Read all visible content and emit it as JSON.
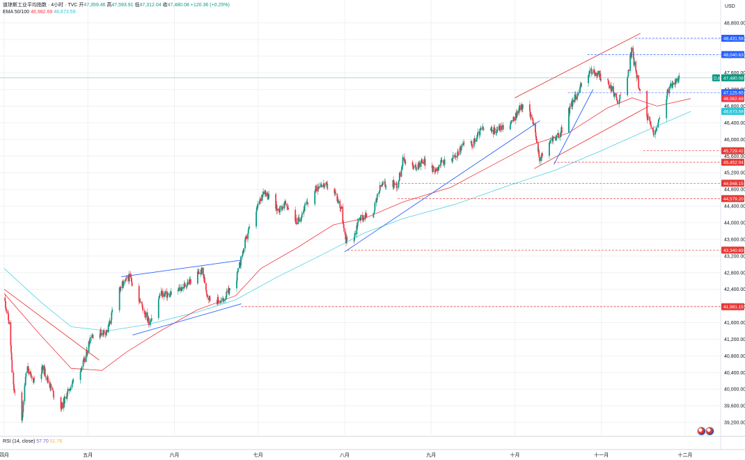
{
  "header": {
    "symbol": "道琼斯工业平均指数 · 4小时 · TVC",
    "open_label": "开",
    "open": "47,359.46",
    "high_label": "高",
    "high": "47,593.91",
    "low_label": "低",
    "low": "47,312.04",
    "close_label": "收",
    "close": "47,480.08",
    "change": "+120.36 (+0.25%)",
    "ema_label": "EMA 50/100",
    "ema50_value": "46,982.69",
    "ema100_value": "46,673.59",
    "currency": "USD"
  },
  "rsi": {
    "label": "RSI (14, close)",
    "value1": "57.70",
    "value2": "51.76"
  },
  "colors": {
    "up": "#089981",
    "down": "#f23645",
    "ema50": "#f23645",
    "ema100": "#4dd0e1",
    "trend_blue": "#2962ff",
    "trend_red": "#e53935",
    "grid": "#eef0f3"
  },
  "chart_data": {
    "type": "candlestick",
    "y_axis": {
      "range": [
        38900,
        49150
      ],
      "ticks": [
        "48,800.00",
        "48,400.00",
        "48,000.00",
        "47,600.00",
        "47,200.00",
        "46,800.00",
        "46,400.00",
        "46,000.00",
        "45,600.00",
        "45,200.00",
        "44,800.00",
        "44,400.00",
        "44,000.00",
        "43,600.00",
        "43,200.00",
        "42,800.00",
        "42,400.00",
        "42,000.00",
        "41,600.00",
        "41,200.00",
        "40,800.00",
        "40,400.00",
        "40,000.00",
        "39,600.00",
        "39,200.00"
      ]
    },
    "x_axis": {
      "months": [
        {
          "label": "四月",
          "date": "2025-04-01"
        },
        {
          "label": "五月",
          "date": "2025-05-01"
        },
        {
          "label": "六月",
          "date": "2025-06-01"
        },
        {
          "label": "七月",
          "date": "2025-07-01"
        },
        {
          "label": "八月",
          "date": "2025-08-01"
        },
        {
          "label": "九月",
          "date": "2025-09-01"
        },
        {
          "label": "十月",
          "date": "2025-10-01"
        },
        {
          "label": "十一月",
          "date": "2025-11-01"
        },
        {
          "label": "十二月",
          "date": "2025-12-01"
        }
      ]
    },
    "close_path": [
      [
        "2025-04-01",
        42200
      ],
      [
        "2025-04-03",
        41500
      ],
      [
        "2025-04-04",
        40200
      ],
      [
        "2025-04-07",
        38950
      ],
      [
        "2025-04-09",
        40600
      ],
      [
        "2025-04-11",
        40200
      ],
      [
        "2025-04-15",
        40500
      ],
      [
        "2025-04-21",
        39500
      ],
      [
        "2025-04-25",
        40100
      ],
      [
        "2025-04-30",
        40700
      ],
      [
        "2025-05-02",
        41300
      ],
      [
        "2025-05-08",
        41400
      ],
      [
        "2025-05-12",
        42400
      ],
      [
        "2025-05-16",
        42700
      ],
      [
        "2025-05-21",
        41900
      ],
      [
        "2025-05-23",
        41600
      ],
      [
        "2025-05-27",
        42300
      ],
      [
        "2025-05-30",
        42250
      ],
      [
        "2025-06-04",
        42450
      ],
      [
        "2025-06-11",
        42850
      ],
      [
        "2025-06-13",
        42200
      ],
      [
        "2025-06-18",
        42100
      ],
      [
        "2025-06-23",
        42600
      ],
      [
        "2025-06-27",
        43700
      ],
      [
        "2025-07-01",
        44400
      ],
      [
        "2025-07-03",
        44800
      ],
      [
        "2025-07-08",
        44300
      ],
      [
        "2025-07-11",
        44450
      ],
      [
        "2025-07-15",
        44000
      ],
      [
        "2025-07-18",
        44400
      ],
      [
        "2025-07-23",
        44950
      ],
      [
        "2025-07-28",
        44800
      ],
      [
        "2025-07-31",
        44300
      ],
      [
        "2025-08-01",
        43600
      ],
      [
        "2025-08-04",
        43550
      ],
      [
        "2025-08-06",
        44100
      ],
      [
        "2025-08-11",
        44200
      ],
      [
        "2025-08-14",
        44900
      ],
      [
        "2025-08-18",
        44950
      ],
      [
        "2025-08-20",
        44900
      ],
      [
        "2025-08-22",
        45550
      ],
      [
        "2025-08-26",
        45300
      ],
      [
        "2025-08-29",
        45500
      ],
      [
        "2025-09-02",
        45250
      ],
      [
        "2025-09-05",
        45450
      ],
      [
        "2025-09-10",
        45600
      ],
      [
        "2025-09-12",
        45850
      ],
      [
        "2025-09-16",
        45900
      ],
      [
        "2025-09-19",
        46250
      ],
      [
        "2025-09-23",
        46200
      ],
      [
        "2025-09-26",
        46300
      ],
      [
        "2025-09-30",
        46400
      ],
      [
        "2025-10-03",
        46800
      ],
      [
        "2025-10-07",
        46600
      ],
      [
        "2025-10-10",
        45500
      ],
      [
        "2025-10-14",
        46000
      ],
      [
        "2025-10-17",
        46100
      ],
      [
        "2025-10-21",
        46800
      ],
      [
        "2025-10-24",
        47200
      ],
      [
        "2025-10-28",
        47650
      ],
      [
        "2025-10-31",
        47550
      ],
      [
        "2025-11-04",
        47300
      ],
      [
        "2025-11-07",
        46900
      ],
      [
        "2025-11-10",
        47400
      ],
      [
        "2025-11-12",
        48200
      ],
      [
        "2025-11-13",
        47700
      ],
      [
        "2025-11-17",
        46600
      ],
      [
        "2025-11-20",
        46100
      ],
      [
        "2025-11-21",
        46300
      ],
      [
        "2025-11-25",
        47200
      ],
      [
        "2025-11-28",
        47450
      ],
      [
        "2025-12-01",
        47480
      ]
    ],
    "ema50_path": [
      [
        "2025-04-01",
        42300
      ],
      [
        "2025-04-14",
        41300
      ],
      [
        "2025-04-25",
        40500
      ],
      [
        "2025-05-06",
        40450
      ],
      [
        "2025-05-15",
        40900
      ],
      [
        "2025-05-27",
        41400
      ],
      [
        "2025-06-09",
        41900
      ],
      [
        "2025-06-23",
        42250
      ],
      [
        "2025-07-02",
        42900
      ],
      [
        "2025-07-15",
        43400
      ],
      [
        "2025-07-28",
        43950
      ],
      [
        "2025-08-08",
        44100
      ],
      [
        "2025-08-22",
        44500
      ],
      [
        "2025-09-08",
        44850
      ],
      [
        "2025-09-22",
        45350
      ],
      [
        "2025-10-06",
        45850
      ],
      [
        "2025-10-20",
        46150
      ],
      [
        "2025-11-03",
        46750
      ],
      [
        "2025-11-12",
        47000
      ],
      [
        "2025-11-21",
        46800
      ],
      [
        "2025-12-03",
        46982
      ]
    ],
    "ema100_path": [
      [
        "2025-04-01",
        42900
      ],
      [
        "2025-04-14",
        42100
      ],
      [
        "2025-04-25",
        41500
      ],
      [
        "2025-05-08",
        41400
      ],
      [
        "2025-05-22",
        41550
      ],
      [
        "2025-06-09",
        41850
      ],
      [
        "2025-06-23",
        42150
      ],
      [
        "2025-07-08",
        42700
      ],
      [
        "2025-07-23",
        43200
      ],
      [
        "2025-08-08",
        43750
      ],
      [
        "2025-08-22",
        44100
      ],
      [
        "2025-09-10",
        44450
      ],
      [
        "2025-09-29",
        44900
      ],
      [
        "2025-10-15",
        45250
      ],
      [
        "2025-10-31",
        45700
      ],
      [
        "2025-11-15",
        46150
      ],
      [
        "2025-12-03",
        46673
      ]
    ],
    "trendlines": [
      {
        "color": "red",
        "from": [
          "2025-04-01",
          42400
        ],
        "to": [
          "2025-05-05",
          40700
        ]
      },
      {
        "color": "blue",
        "from": [
          "2025-05-13",
          42700
        ],
        "to": [
          "2025-06-25",
          43100
        ]
      },
      {
        "color": "blue",
        "from": [
          "2025-05-17",
          41300
        ],
        "to": [
          "2025-06-25",
          42050
        ]
      },
      {
        "color": "blue",
        "from": [
          "2025-08-01",
          43300
        ],
        "to": [
          "2025-10-10",
          46450
        ]
      },
      {
        "color": "red",
        "from": [
          "2025-10-01",
          47000
        ],
        "to": [
          "2025-11-15",
          48550
        ]
      },
      {
        "color": "red",
        "from": [
          "2025-10-08",
          45300
        ],
        "to": [
          "2025-11-18",
          46800
        ]
      },
      {
        "color": "blue",
        "from": [
          "2025-10-15",
          45400
        ],
        "to": [
          "2025-10-29",
          47200
        ]
      }
    ],
    "horizontal_levels": [
      {
        "value": 48431.58,
        "label": "48,431.58",
        "color": "blue",
        "from": "2025-11-13"
      },
      {
        "value": 48040.63,
        "label": "48,040.63",
        "color": "blue",
        "from": "2025-10-27"
      },
      {
        "value": 47125.65,
        "label": "47,125.65",
        "color": "blue",
        "from": "2025-10-20"
      },
      {
        "value": 45729.42,
        "label": "45,729.42",
        "color": "red",
        "from": "2025-11-16"
      },
      {
        "value": 45452.04,
        "label": "45,452.04",
        "color": "red",
        "from": "2025-10-15"
      },
      {
        "value": 44948.15,
        "label": "44,948.15",
        "color": "red",
        "from": "2025-08-20"
      },
      {
        "value": 44579.2,
        "label": "44,579.20",
        "color": "red",
        "from": "2025-08-20"
      },
      {
        "value": 43340.69,
        "label": "43,340.69",
        "color": "red",
        "from": "2025-08-02"
      },
      {
        "value": 41981.15,
        "label": "41,981.15",
        "color": "red",
        "from": "2025-06-25"
      }
    ],
    "price_tags": [
      {
        "value": 47480.08,
        "label": "47,480.08",
        "prefix": "D,8",
        "color": "#089981"
      },
      {
        "value": 46982.69,
        "label": "46,982.69",
        "color": "#f23645"
      },
      {
        "value": 46673.59,
        "label": "46,673.59",
        "color": "#26c6da"
      }
    ]
  }
}
